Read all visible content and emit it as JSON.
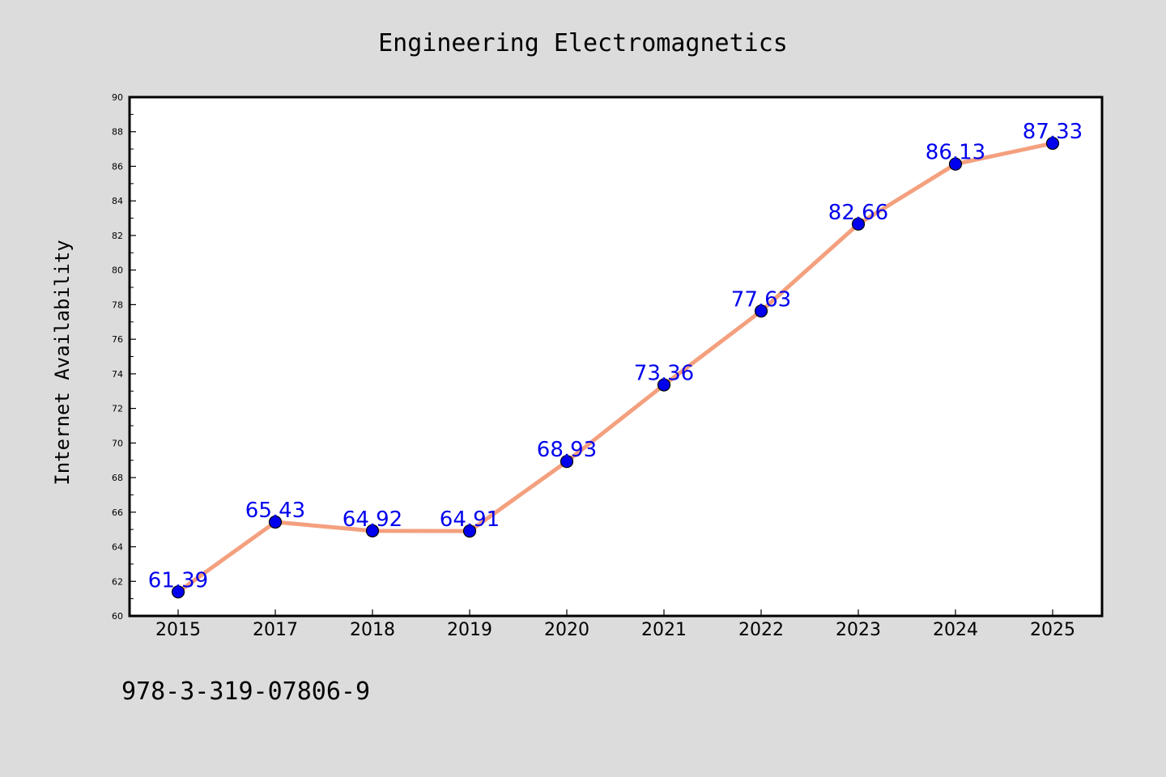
{
  "chart_data": {
    "type": "line",
    "title": "Engineering Electromagnetics",
    "xlabel": "",
    "ylabel": "Internet Availability",
    "categories": [
      "2015",
      "2017",
      "2018",
      "2019",
      "2020",
      "2021",
      "2022",
      "2023",
      "2024",
      "2025"
    ],
    "series": [
      {
        "values": [
          61.39,
          65.43,
          64.92,
          64.91,
          68.93,
          73.36,
          77.63,
          82.66,
          86.13,
          87.33
        ],
        "labels": [
          "61.39",
          "65.43",
          "64.92",
          "64.91",
          "68.93",
          "73.36",
          "77.63",
          "82.66",
          "86.13",
          "87.33"
        ],
        "line_color": "#f4a07e",
        "marker_color": "#0000ee",
        "label_color": "#0000ee"
      }
    ],
    "ylim": [
      60,
      90
    ],
    "yticks": [
      "60",
      "62",
      "64",
      "66",
      "68",
      "70",
      "72",
      "74",
      "76",
      "78",
      "80",
      "82",
      "84",
      "86",
      "88",
      "90"
    ],
    "grid": false,
    "legend": "none"
  },
  "footer_text": "978-3-319-07806-9",
  "colors": {
    "background": "#dcdcdc",
    "plot_background": "#ffffff",
    "axis": "#000000"
  }
}
